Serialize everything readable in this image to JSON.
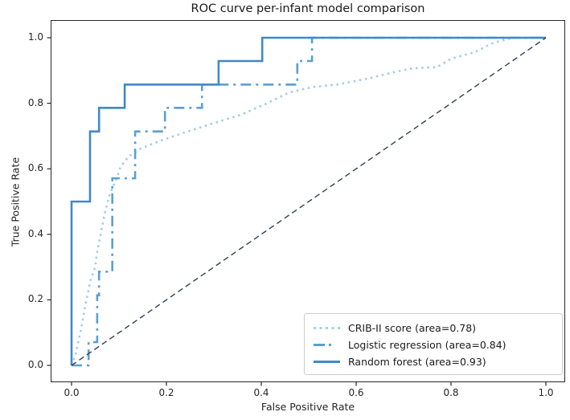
{
  "chart_data": {
    "type": "line",
    "title": "ROC curve per-infant model comparison",
    "xlabel": "False Positive Rate",
    "ylabel": "True Positive Rate",
    "xlim": [
      0.0,
      1.0
    ],
    "ylim": [
      0.0,
      1.0
    ],
    "x_ticks": [
      "0.0",
      "0.2",
      "0.4",
      "0.6",
      "0.8",
      "1.0"
    ],
    "y_ticks": [
      "0.0",
      "0.2",
      "0.4",
      "0.6",
      "0.8",
      "1.0"
    ],
    "x_tick_values": [
      0.0,
      0.2,
      0.4,
      0.6,
      0.8,
      1.0
    ],
    "y_tick_values": [
      0.0,
      0.2,
      0.4,
      0.6,
      0.8,
      1.0
    ],
    "grid": false,
    "legend_position": "lower right",
    "series": [
      {
        "name": "crib_ii_score",
        "label": "CRIB-II score (area=0.78)",
        "auc": 0.78,
        "color": "#a7cde6",
        "linestyle": "dotted",
        "linewidth": 2.6,
        "points": [
          [
            0,
            0
          ],
          [
            0.008,
            0.03
          ],
          [
            0.02,
            0.11
          ],
          [
            0.03,
            0.19
          ],
          [
            0.04,
            0.26
          ],
          [
            0.05,
            0.3
          ],
          [
            0.053,
            0.34
          ],
          [
            0.06,
            0.39
          ],
          [
            0.068,
            0.45
          ],
          [
            0.071,
            0.47
          ],
          [
            0.08,
            0.52
          ],
          [
            0.095,
            0.57
          ],
          [
            0.103,
            0.605
          ],
          [
            0.12,
            0.637
          ],
          [
            0.146,
            0.662
          ],
          [
            0.188,
            0.686
          ],
          [
            0.239,
            0.711
          ],
          [
            0.29,
            0.735
          ],
          [
            0.357,
            0.765
          ],
          [
            0.408,
            0.797
          ],
          [
            0.459,
            0.833
          ],
          [
            0.51,
            0.85
          ],
          [
            0.56,
            0.857
          ],
          [
            0.63,
            0.877
          ],
          [
            0.68,
            0.895
          ],
          [
            0.72,
            0.907
          ],
          [
            0.77,
            0.91
          ],
          [
            0.8,
            0.936
          ],
          [
            0.85,
            0.956
          ],
          [
            0.89,
            0.985
          ],
          [
            0.93,
            1.0
          ],
          [
            1,
            1
          ]
        ]
      },
      {
        "name": "logistic_regression",
        "label": "Logistic regression (area=0.84)",
        "auc": 0.84,
        "color": "#5b9fd3",
        "linestyle": "dashdot",
        "linewidth": 2.6,
        "points": [
          [
            0,
            0
          ],
          [
            0.036,
            0
          ],
          [
            0.036,
            0.071
          ],
          [
            0.054,
            0.071
          ],
          [
            0.054,
            0.214
          ],
          [
            0.058,
            0.214
          ],
          [
            0.058,
            0.286
          ],
          [
            0.086,
            0.286
          ],
          [
            0.086,
            0.571
          ],
          [
            0.134,
            0.571
          ],
          [
            0.134,
            0.714
          ],
          [
            0.197,
            0.714
          ],
          [
            0.197,
            0.786
          ],
          [
            0.275,
            0.786
          ],
          [
            0.275,
            0.857
          ],
          [
            0.476,
            0.857
          ],
          [
            0.476,
            0.929
          ],
          [
            0.507,
            0.929
          ],
          [
            0.507,
            1.0
          ],
          [
            1,
            1
          ]
        ]
      },
      {
        "name": "random_forest",
        "label": "Random forest (area=0.93)",
        "auc": 0.93,
        "color": "#4089c7",
        "linestyle": "solid",
        "linewidth": 2.6,
        "points": [
          [
            0,
            0
          ],
          [
            0,
            0.5
          ],
          [
            0.039,
            0.5
          ],
          [
            0.039,
            0.714
          ],
          [
            0.058,
            0.714
          ],
          [
            0.058,
            0.786
          ],
          [
            0.112,
            0.786
          ],
          [
            0.112,
            0.857
          ],
          [
            0.31,
            0.857
          ],
          [
            0.31,
            0.929
          ],
          [
            0.402,
            0.929
          ],
          [
            0.402,
            1.0
          ],
          [
            1,
            1
          ]
        ]
      },
      {
        "name": "chance_line",
        "label": null,
        "color": "#30404f",
        "linestyle": "dashed",
        "linewidth": 1.4,
        "points": [
          [
            0,
            0
          ],
          [
            1,
            1
          ]
        ]
      }
    ]
  },
  "colors": {
    "spine": "#262626",
    "tick": "#262626",
    "text": "#262626",
    "legend_border": "#cccccc",
    "background": "#ffffff"
  }
}
